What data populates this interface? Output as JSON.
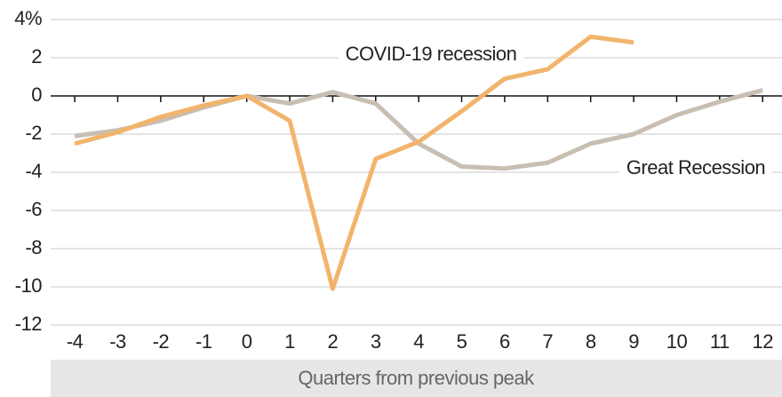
{
  "chart_data": {
    "type": "line",
    "x_label": "Quarters from previous peak",
    "x": [
      -4,
      -3,
      -2,
      -1,
      0,
      1,
      2,
      3,
      4,
      5,
      6,
      7,
      8,
      9,
      10,
      11,
      12
    ],
    "xlim": [
      -4.56,
      12.45
    ],
    "xticks": [
      -4,
      -3,
      -2,
      -1,
      0,
      1,
      2,
      3,
      4,
      5,
      6,
      7,
      8,
      9,
      10,
      11,
      12
    ],
    "ylim": [
      -12,
      4
    ],
    "yticks": [
      {
        "value": 4,
        "label": "4%"
      },
      2,
      0,
      -2,
      -4,
      -6,
      -8,
      -10,
      -12
    ],
    "grid": true,
    "series": [
      {
        "name": "Great Recession",
        "color": "#c8beb2",
        "values": [
          -2.1,
          -1.8,
          -1.3,
          -0.6,
          0,
          -0.4,
          0.2,
          -0.4,
          -2.5,
          -3.7,
          -3.8,
          -3.5,
          -2.5,
          -2.0,
          -1.0,
          -0.3,
          0.3
        ]
      },
      {
        "name": "COVID-19 recession",
        "color": "#f2b46c",
        "values": [
          -2.5,
          -1.9,
          -1.1,
          -0.5,
          0,
          -1.3,
          -10.1,
          -3.3,
          -2.4,
          -0.8,
          0.9,
          1.4,
          3.1,
          2.8,
          null,
          null,
          null
        ]
      }
    ]
  }
}
